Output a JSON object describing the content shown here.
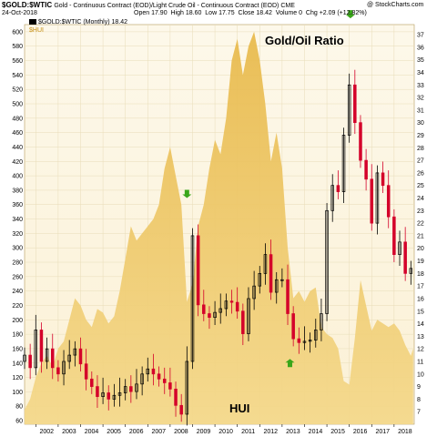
{
  "header": {
    "symbol": "$GOLD:$WTIC",
    "description": "Gold - Continuous Contract (EOD)/Light Crude Oil - Continuous Contract (EOD) CME",
    "credit": "@ StockCharts.com",
    "date": "24-Oct-2018",
    "open_label": "Open",
    "open": "17.90",
    "high_label": "High",
    "high": "18.60",
    "low_label": "Low",
    "low": "17.75",
    "close_label": "Close",
    "close": "18.42",
    "volume_label": "Volume",
    "volume": "0",
    "change_label": "Chg",
    "change": "+2.09 (+12.82%)",
    "legend": "$GOLD:$WTIC (Monthly) 18.42",
    "overlay_legend": "$HUI"
  },
  "colors": {
    "area_fill": "#e8b94a",
    "area_fill_light": "#f4d88a",
    "background": "#fbf1d6",
    "up_candle": "#000000",
    "down_candle": "#d4002a",
    "arrow": "#3aa61a"
  },
  "chart_data": {
    "type": "area",
    "annotations": [
      "Gold/Oil Ratio",
      "HUI"
    ],
    "x_ticks": [
      "2002",
      "2003",
      "2004",
      "2005",
      "2006",
      "2007",
      "2008",
      "2009",
      "2010",
      "2011",
      "2012",
      "2013",
      "2014",
      "2015",
      "2016",
      "2017",
      "2018"
    ],
    "xlim": [
      2001.5,
      2018.9
    ],
    "left_axis": {
      "ticks": [
        60,
        80,
        100,
        120,
        140,
        160,
        180,
        200,
        220,
        240,
        260,
        280,
        300,
        320,
        340,
        360,
        380,
        400,
        420,
        440,
        460,
        480,
        500,
        520,
        540,
        560,
        580,
        600
      ],
      "ylim": [
        55,
        610
      ]
    },
    "right_axis": {
      "ticks": [
        7,
        8,
        9,
        10,
        11,
        12,
        13,
        14,
        15,
        16,
        17,
        18,
        19,
        20,
        21,
        22,
        23,
        24,
        25,
        26,
        27,
        28,
        29,
        30,
        31,
        32,
        33,
        34,
        35,
        36,
        37
      ],
      "ylim": [
        6,
        37.8
      ]
    },
    "grid": true,
    "series": [
      {
        "name": "$HUI",
        "axis": "left",
        "style": "area",
        "x": [
          2001.5,
          2001.75,
          2002.0,
          2002.25,
          2002.5,
          2002.75,
          2003.0,
          2003.25,
          2003.5,
          2003.75,
          2004.0,
          2004.25,
          2004.5,
          2004.75,
          2005.0,
          2005.25,
          2005.5,
          2005.75,
          2006.0,
          2006.25,
          2006.5,
          2006.75,
          2007.0,
          2007.25,
          2007.5,
          2007.75,
          2008.0,
          2008.25,
          2008.5,
          2008.75,
          2009.0,
          2009.25,
          2009.5,
          2009.75,
          2010.0,
          2010.25,
          2010.5,
          2010.75,
          2011.0,
          2011.25,
          2011.5,
          2011.75,
          2012.0,
          2012.25,
          2012.5,
          2012.75,
          2013.0,
          2013.25,
          2013.5,
          2013.75,
          2014.0,
          2014.25,
          2014.5,
          2014.75,
          2015.0,
          2015.25,
          2015.5,
          2015.75,
          2016.0,
          2016.25,
          2016.5,
          2016.75,
          2017.0,
          2017.25,
          2017.5,
          2017.75,
          2018.0,
          2018.25,
          2018.5,
          2018.75,
          2018.85
        ],
        "values": [
          75,
          90,
          120,
          140,
          150,
          135,
          160,
          170,
          200,
          230,
          220,
          200,
          190,
          215,
          210,
          195,
          205,
          240,
          285,
          330,
          310,
          320,
          330,
          340,
          360,
          410,
          440,
          400,
          360,
          225,
          250,
          330,
          360,
          410,
          450,
          430,
          480,
          560,
          590,
          540,
          580,
          600,
          560,
          500,
          420,
          460,
          410,
          300,
          230,
          240,
          225,
          240,
          245,
          190,
          180,
          175,
          160,
          115,
          110,
          175,
          255,
          220,
          185,
          200,
          195,
          190,
          195,
          185,
          165,
          150,
          160
        ]
      },
      {
        "name": "$GOLD:$WTIC (Monthly)",
        "axis": "right",
        "style": "candlestick",
        "x": [
          2001.5,
          2001.75,
          2002.0,
          2002.25,
          2002.5,
          2002.75,
          2003.0,
          2003.25,
          2003.5,
          2003.75,
          2004.0,
          2004.25,
          2004.5,
          2004.75,
          2005.0,
          2005.25,
          2005.5,
          2005.75,
          2006.0,
          2006.25,
          2006.5,
          2006.75,
          2007.0,
          2007.25,
          2007.5,
          2007.75,
          2008.0,
          2008.25,
          2008.5,
          2008.75,
          2009.0,
          2009.25,
          2009.5,
          2009.75,
          2010.0,
          2010.25,
          2010.5,
          2010.75,
          2011.0,
          2011.25,
          2011.5,
          2011.75,
          2012.0,
          2012.25,
          2012.5,
          2012.75,
          2013.0,
          2013.25,
          2013.5,
          2013.75,
          2014.0,
          2014.25,
          2014.5,
          2014.75,
          2015.0,
          2015.25,
          2015.5,
          2015.75,
          2016.0,
          2016.25,
          2016.5,
          2016.75,
          2017.0,
          2017.25,
          2017.5,
          2017.75,
          2018.0,
          2018.25,
          2018.5,
          2018.75
        ],
        "values": [
          11.5,
          10.5,
          13.5,
          11.0,
          12.0,
          10.5,
          10.0,
          11.0,
          11.5,
          12.0,
          10.8,
          9.6,
          9.0,
          8.2,
          8.5,
          8.0,
          8.3,
          8.5,
          9.0,
          8.6,
          9.2,
          10.0,
          10.4,
          10.0,
          9.6,
          9.3,
          8.8,
          7.5,
          6.8,
          11.0,
          21.0,
          15.5,
          14.8,
          14.5,
          14.9,
          15.2,
          15.8,
          15.7,
          15.0,
          13.2,
          16.0,
          17.0,
          18.0,
          19.5,
          16.5,
          17.5,
          17.5,
          14.8,
          12.8,
          12.5,
          12.6,
          12.7,
          13.5,
          14.8,
          23.0,
          25.0,
          24.5,
          29.0,
          33.0,
          30.0,
          27.0,
          25.5,
          22.0,
          26.0,
          25.0,
          22.5,
          19.5,
          20.5,
          18.0,
          18.4
        ],
        "arrows": [
          {
            "x": 2008.75,
            "value": 24.0,
            "direction": "down"
          },
          {
            "x": 2013.35,
            "value": 11.2,
            "direction": "up"
          },
          {
            "x": 2016.05,
            "value": 38.3,
            "direction": "down"
          }
        ]
      }
    ]
  }
}
